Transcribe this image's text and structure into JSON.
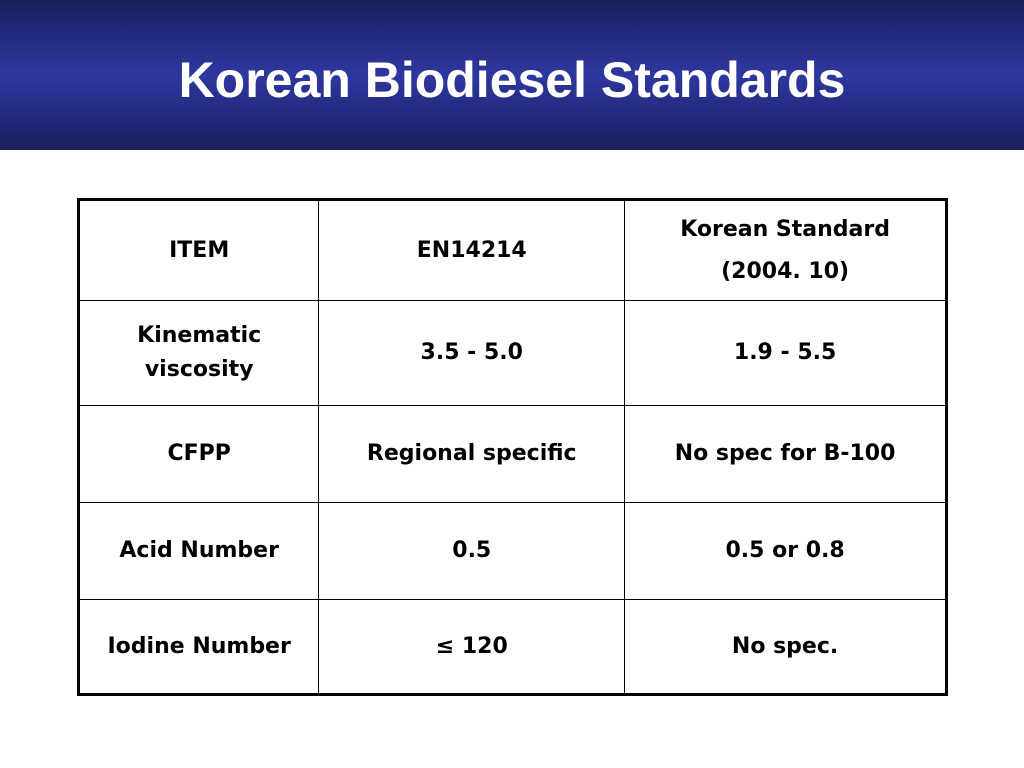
{
  "header": {
    "title": "Korean Biodiesel Standards"
  },
  "table": {
    "columns": [
      [
        "ITEM"
      ],
      [
        "EN14214"
      ],
      [
        "Korean Standard",
        "(2004. 10)"
      ]
    ],
    "rows": [
      [
        [
          "Kinematic",
          "viscosity"
        ],
        [
          "3.5 - 5.0"
        ],
        [
          "1.9 - 5.5"
        ]
      ],
      [
        [
          "CFPP"
        ],
        [
          "Regional specific"
        ],
        [
          "No spec for B-100"
        ]
      ],
      [
        [
          "Acid Number"
        ],
        [
          "0.5"
        ],
        [
          "0.5 or 0.8"
        ]
      ],
      [
        [
          "Iodine Number"
        ],
        [
          "≤ 120"
        ],
        [
          "No spec."
        ]
      ]
    ]
  }
}
